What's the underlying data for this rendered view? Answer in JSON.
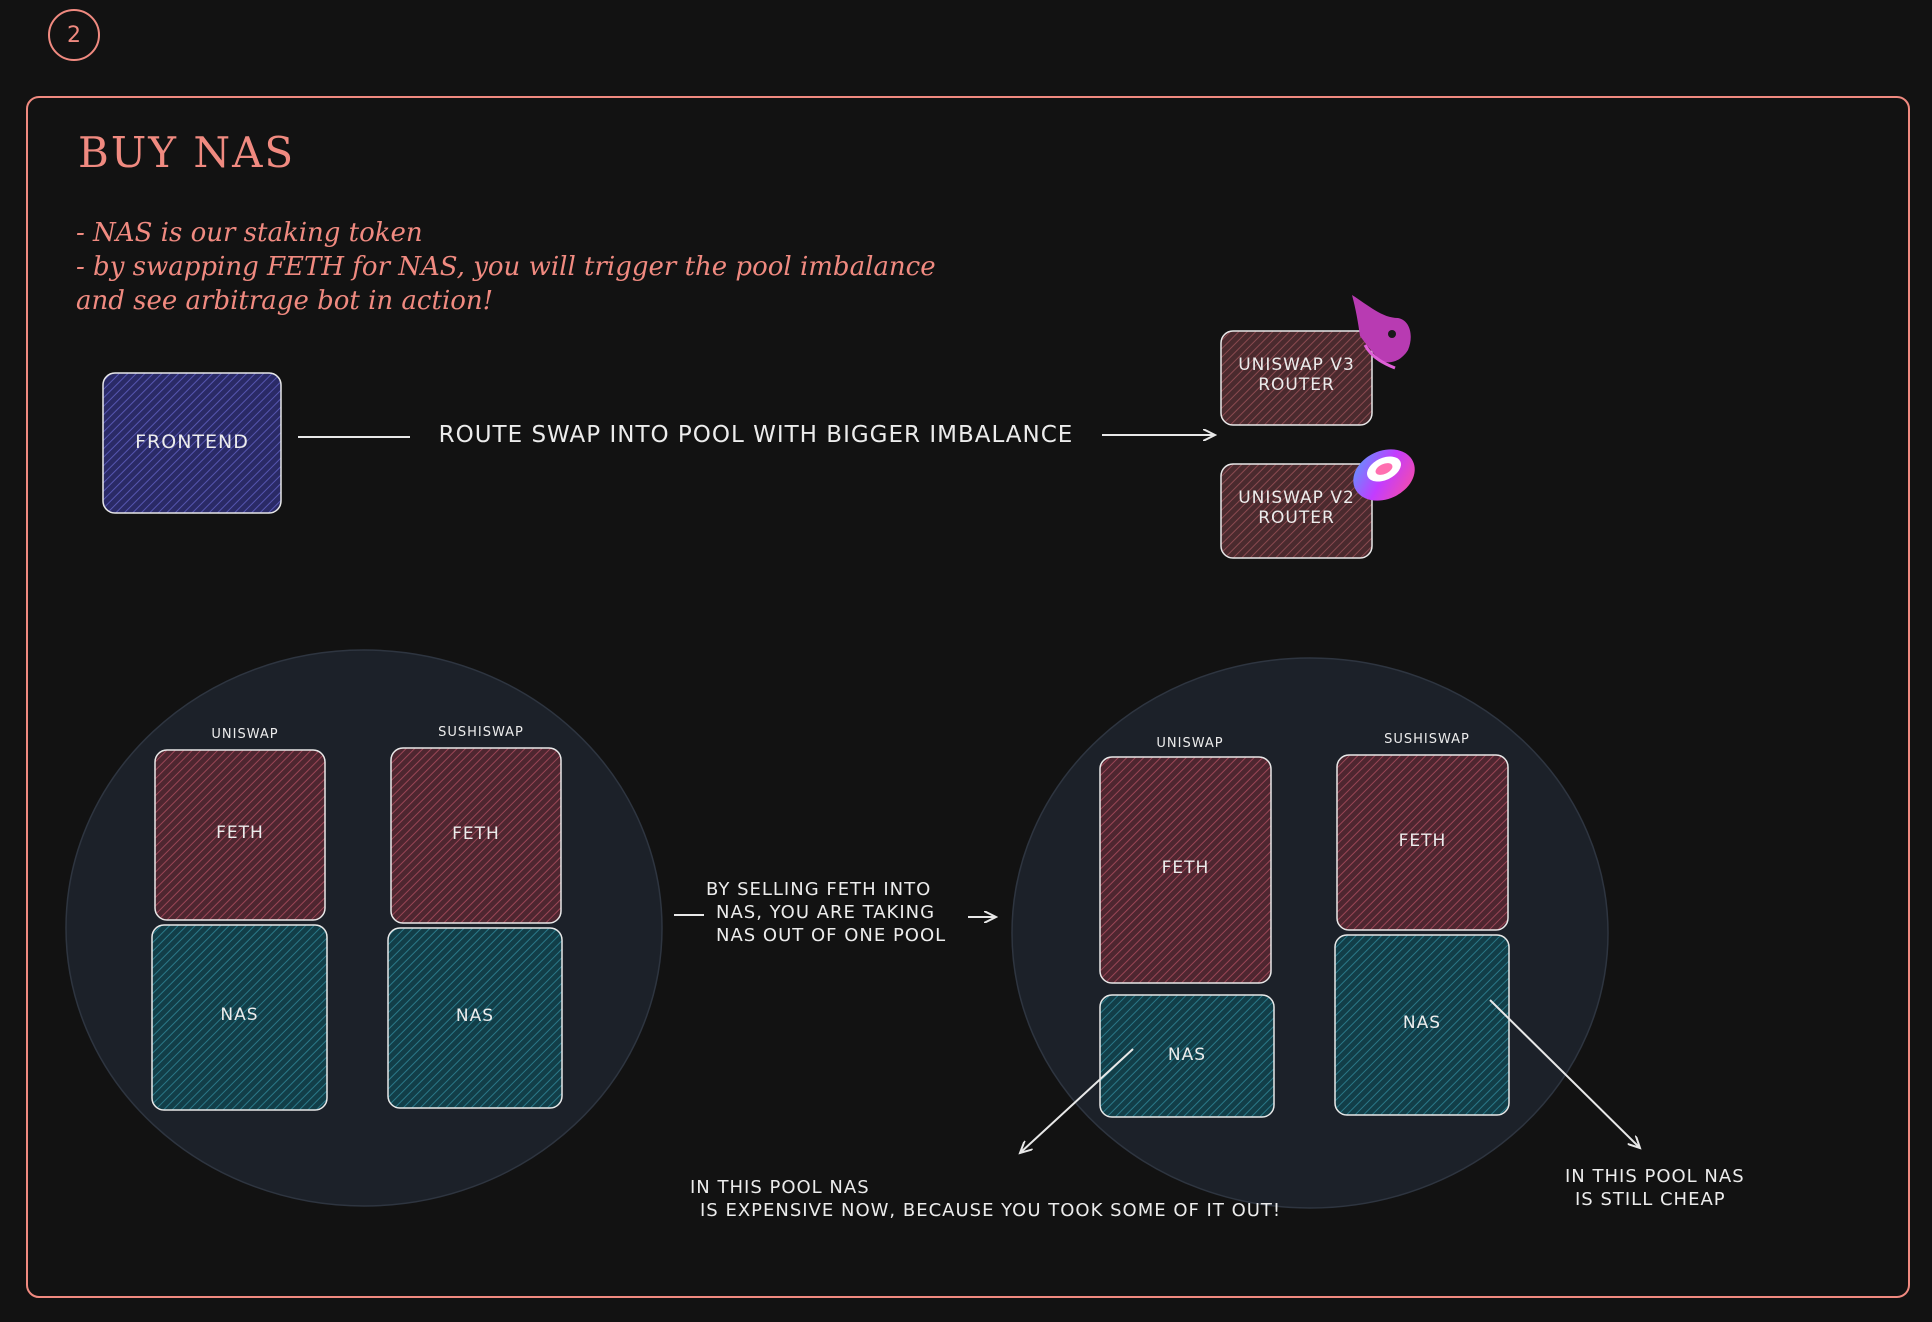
{
  "step_number": "2",
  "title": "Buy NAS",
  "notes": [
    "- NAS is our staking token",
    "- by swapping FETH for NAS, you will trigger the pool imbalance",
    "and see arbitrage bot in action!"
  ],
  "frontend": {
    "label": "FRONTEND"
  },
  "route_label": "ROUTE SWAP INTO POOL WITH BIGGER IMBALANCE",
  "routers": [
    {
      "line1": "UNISWAP V3",
      "line2": "ROUTER",
      "logo": "uniswap-unicorn-icon"
    },
    {
      "line1": "UNISWAP V2",
      "line2": "ROUTER",
      "logo": "sushi-roll-icon"
    }
  ],
  "before": {
    "pools": [
      {
        "name": "UNISWAP",
        "top": "FETH",
        "bottom": "NAS"
      },
      {
        "name": "SUSHISWAP",
        "top": "FETH",
        "bottom": "NAS"
      }
    ]
  },
  "transition_caption": [
    "BY SELLING FETH INTO",
    "NAS, YOU ARE TAKING",
    "NAS OUT OF ONE POOL"
  ],
  "after": {
    "pools": [
      {
        "name": "UNISWAP",
        "top": "FETH",
        "bottom": "NAS"
      },
      {
        "name": "SUSHISWAP",
        "top": "FETH",
        "bottom": "NAS"
      }
    ]
  },
  "expensive_note": [
    "IN THIS POOL NAS",
    "IS EXPENSIVE NOW, BECAUSE YOU TOOK SOME OF IT OUT!"
  ],
  "cheap_note": [
    "IN THIS POOL NAS",
    "IS STILL CHEAP"
  ],
  "colors": {
    "accent": "#f08a80",
    "frontend_fill": "#3c3c8a",
    "router_fill": "#6a3a3e",
    "feth_fill": "#7a3a46",
    "nas_fill": "#1d5a66",
    "pool_circle": "#1c2129",
    "stroke": "#e8e8e8"
  }
}
